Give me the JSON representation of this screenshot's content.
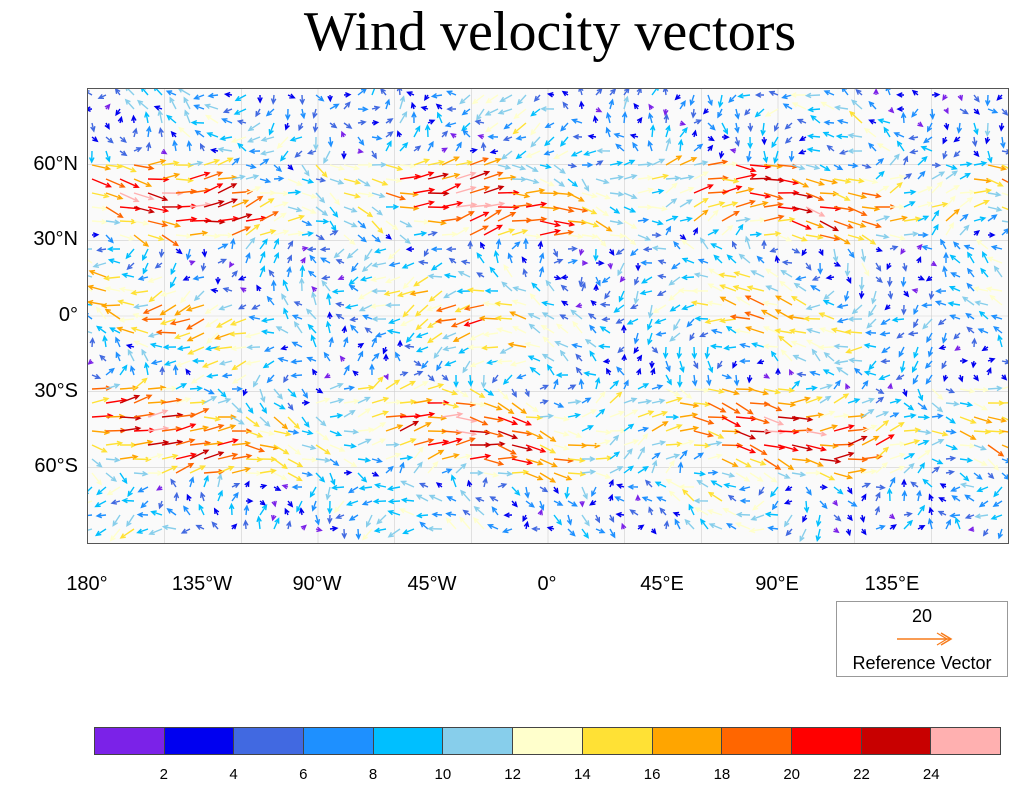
{
  "title": "Wind velocity vectors",
  "map": {
    "type": "vector-field",
    "projection": "cylindrical equidistant",
    "lon_range": [
      -180,
      180
    ],
    "lat_range": [
      -90,
      90
    ],
    "lat_ticks": [
      {
        "value": 60,
        "label": "60°N"
      },
      {
        "value": 30,
        "label": "30°N"
      },
      {
        "value": 0,
        "label": "0°"
      },
      {
        "value": -30,
        "label": "30°S"
      },
      {
        "value": -60,
        "label": "60°S"
      }
    ],
    "lon_ticks": [
      {
        "value": -180,
        "label": "180°"
      },
      {
        "value": -135,
        "label": "135°W"
      },
      {
        "value": -90,
        "label": "90°W"
      },
      {
        "value": -45,
        "label": "45°W"
      },
      {
        "value": 0,
        "label": "0°"
      },
      {
        "value": 45,
        "label": "45°E"
      },
      {
        "value": 90,
        "label": "90°E"
      },
      {
        "value": 135,
        "label": "135°E"
      }
    ],
    "grid": true
  },
  "reference_vector": {
    "magnitude": "20",
    "label": "Reference Vector",
    "color": "#f77b1a"
  },
  "colorbar": {
    "colors": [
      "#7b22e8",
      "#0000f0",
      "#4169e1",
      "#1e90ff",
      "#00bfff",
      "#87ceeb",
      "#ffffcc",
      "#ffe135",
      "#ffa500",
      "#ff6600",
      "#ff0000",
      "#c80000",
      "#ffb0b0"
    ],
    "tick_labels": [
      "2",
      "4",
      "6",
      "8",
      "10",
      "12",
      "14",
      "16",
      "18",
      "20",
      "22",
      "24"
    ]
  }
}
